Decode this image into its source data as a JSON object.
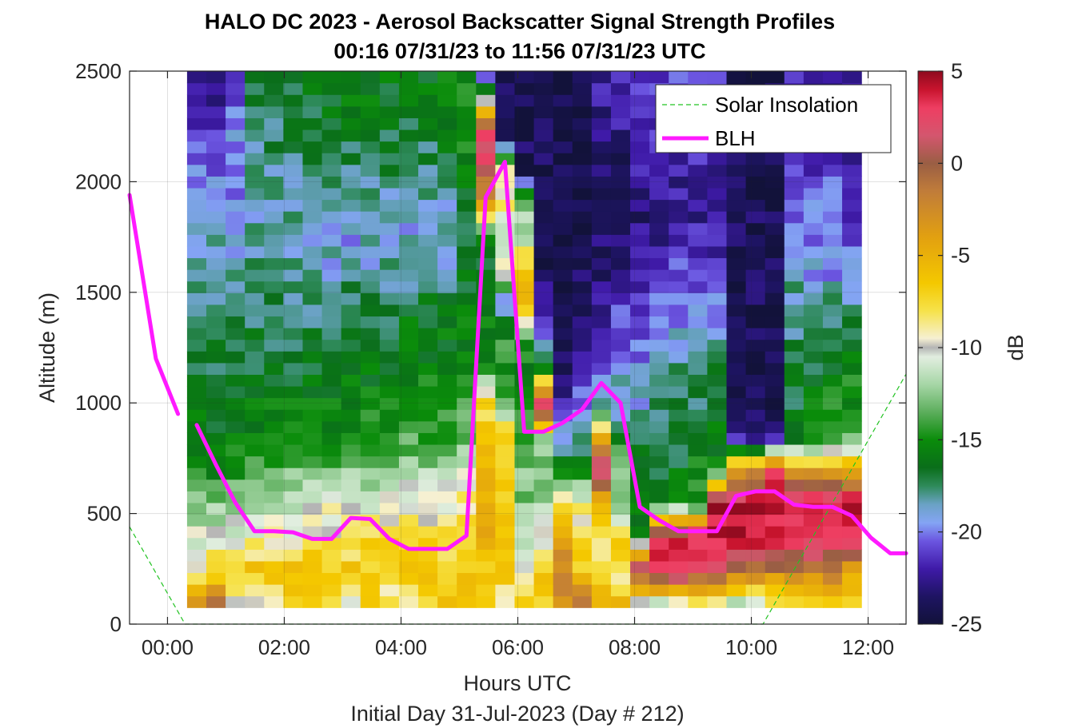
{
  "chart_data": {
    "type": "heatmap",
    "title": "HALO DC 2023 - Aerosol Backscatter Signal Strength Profiles",
    "subtitle": "00:16 07/31/23 to 11:56 07/31/23  UTC",
    "xlabel": "Hours UTC",
    "xlabel2": "Initial Day 31-Jul-2023 (Day # 212)",
    "ylabel": "Altitude (m)",
    "colorbar_label": "dB",
    "xlim": [
      -0.65,
      12.65
    ],
    "ylim": [
      0,
      2500
    ],
    "x_ticks": [
      0,
      2,
      4,
      6,
      8,
      10,
      12
    ],
    "x_tick_labels": [
      "00:00",
      "02:00",
      "04:00",
      "06:00",
      "08:00",
      "10:00",
      "12:00"
    ],
    "y_ticks": [
      0,
      500,
      1000,
      1500,
      2000,
      2500
    ],
    "y_tick_labels": [
      "0",
      "500",
      "1000",
      "1500",
      "2000",
      "2500"
    ],
    "clim": [
      -25,
      5
    ],
    "colorbar_ticks": [
      5,
      0,
      -5,
      -10,
      -15,
      -20,
      -25
    ],
    "colorbar_tick_labels": [
      "5",
      "0",
      "-5",
      "-10",
      "-15",
      "-20",
      "-25"
    ],
    "colormap": [
      {
        "db": -25,
        "color": "#12123a"
      },
      {
        "db": -23.5,
        "color": "#1e1462"
      },
      {
        "db": -22,
        "color": "#3f1aa8"
      },
      {
        "db": -20.5,
        "color": "#6b55e0"
      },
      {
        "db": -19.5,
        "color": "#84a4f4"
      },
      {
        "db": -18.5,
        "color": "#6aa2c4"
      },
      {
        "db": -17.5,
        "color": "#2e8a5a"
      },
      {
        "db": -16.5,
        "color": "#0a6e1a"
      },
      {
        "db": -15,
        "color": "#0a8c0a"
      },
      {
        "db": -13.5,
        "color": "#5cae5c"
      },
      {
        "db": -12,
        "color": "#a6d6a6"
      },
      {
        "db": -10.5,
        "color": "#e2eee0"
      },
      {
        "db": -10,
        "color": "#b4b4b4"
      },
      {
        "db": -9.5,
        "color": "#f6f0d2"
      },
      {
        "db": -8,
        "color": "#f6e24a"
      },
      {
        "db": -6.5,
        "color": "#f4c800"
      },
      {
        "db": -4,
        "color": "#e2a010"
      },
      {
        "db": -1.5,
        "color": "#c07c3a"
      },
      {
        "db": 0,
        "color": "#9a5e44"
      },
      {
        "db": 1.5,
        "color": "#d4566e"
      },
      {
        "db": 3,
        "color": "#ee3e62"
      },
      {
        "db": 4,
        "color": "#c8142e"
      },
      {
        "db": 5,
        "color": "#8e0a1e"
      }
    ],
    "heatmap": {
      "columns_x_hours": [
        0.5,
        0.83,
        1.16,
        1.49,
        1.82,
        2.15,
        2.48,
        2.81,
        3.14,
        3.47,
        3.8,
        4.13,
        4.46,
        4.79,
        5.12,
        5.45,
        5.78,
        6.11,
        6.44,
        6.77,
        7.1,
        7.43,
        7.76,
        8.09,
        8.42,
        8.75,
        9.08,
        9.41,
        9.74,
        10.07,
        10.4,
        10.73,
        11.06,
        11.39,
        11.72
      ],
      "rows_altitude_m": [
        100,
        250,
        400,
        550,
        700,
        850,
        1000,
        1150,
        1300,
        1450,
        1600,
        1750,
        1900,
        2050,
        2200,
        2350,
        2500
      ],
      "column_profiles_db": [
        [
          -2,
          -9,
          -10.5,
          -13,
          -15,
          -16,
          -16.5,
          -17,
          -17,
          -18,
          -19,
          -19,
          -19.5,
          -20,
          -21,
          -22,
          -22.5
        ],
        [
          -2,
          -7,
          -10.5,
          -13,
          -15,
          -16,
          -16.5,
          -17,
          -17,
          -18,
          -18.5,
          -19,
          -19.5,
          -20,
          -21,
          -22,
          -22.5
        ],
        [
          -9,
          -7,
          -10,
          -12.5,
          -15,
          -16,
          -16.5,
          -17,
          -17.5,
          -18,
          -18.5,
          -19,
          -19.5,
          -19.5,
          -20,
          -20.5,
          -21
        ],
        [
          -10,
          -6.5,
          -9.5,
          -12,
          -14.5,
          -15.5,
          -16,
          -16.5,
          -17,
          -17.5,
          -18,
          -18.5,
          -19,
          -18.5,
          -18,
          -17.5,
          -17
        ],
        [
          -9,
          -6.5,
          -9.5,
          -11,
          -14,
          -15,
          -16,
          -16.5,
          -17,
          -17.5,
          -18,
          -18.5,
          -18.5,
          -18,
          -17.5,
          -17,
          -16.5
        ],
        [
          -7,
          -6.5,
          -9.5,
          -11,
          -13.5,
          -15,
          -16,
          -16.5,
          -17,
          -17.5,
          -18,
          -18.5,
          -18.5,
          -18,
          -17.5,
          -17,
          -16.5
        ],
        [
          -7,
          -6.5,
          -9,
          -10.5,
          -13,
          -15,
          -15.5,
          -16.5,
          -17,
          -17.5,
          -18,
          -18.5,
          -19,
          -18,
          -17,
          -16.5,
          -16
        ],
        [
          -7,
          -6.5,
          -9,
          -10,
          -13,
          -15,
          -15.5,
          -16,
          -17,
          -17.5,
          -19,
          -19,
          -19,
          -18,
          -17,
          -16.5,
          -16
        ],
        [
          -10,
          -6.5,
          -8.5,
          -10.5,
          -13,
          -14.5,
          -15.5,
          -16,
          -16.5,
          -17,
          -18,
          -19.5,
          -19,
          -18,
          -16.5,
          -16,
          -16
        ],
        [
          -6.5,
          -6.5,
          -8,
          -10.5,
          -12.5,
          -14.5,
          -15.5,
          -16,
          -16.5,
          -17,
          -18.5,
          -19,
          -18.5,
          -17.5,
          -16.5,
          -16,
          -16
        ],
        [
          -9,
          -6.5,
          -8,
          -10,
          -12.5,
          -14.5,
          -15.5,
          -16,
          -16.5,
          -17,
          -18.5,
          -19,
          -18.5,
          -17.5,
          -17,
          -16.5,
          -16
        ],
        [
          -10,
          -6.5,
          -8,
          -10,
          -12,
          -14,
          -15,
          -15.5,
          -16,
          -16.5,
          -18.5,
          -19,
          -18.5,
          -17.5,
          -17,
          -16.5,
          -16
        ],
        [
          -7,
          -6.5,
          -8,
          -10,
          -12,
          -14,
          -15,
          -15.5,
          -16,
          -16.5,
          -19,
          -19,
          -18.5,
          -17.5,
          -17,
          -16.5,
          -16
        ],
        [
          -7,
          -6.5,
          -8,
          -10,
          -12,
          -14,
          -15,
          -15.5,
          -16,
          -16.5,
          -19.5,
          -19,
          -18.5,
          -17,
          -16.5,
          -16,
          -16
        ],
        [
          -7,
          -6,
          -7.5,
          -9,
          -10.5,
          -13,
          -14.5,
          -15,
          -15.5,
          -16,
          -16.5,
          -16.5,
          -16.5,
          -15.5,
          -15,
          -15,
          -15
        ],
        [
          -6.5,
          -6.5,
          -5,
          -5,
          -6,
          -7,
          -8,
          -15,
          -15.5,
          -16,
          -16.5,
          -15,
          -4,
          1,
          3,
          -8,
          -23.5
        ],
        [
          -10.5,
          -6,
          -6,
          -7,
          -7,
          -6.5,
          -13,
          -15,
          -14.5,
          -20.5,
          -7.5,
          -13,
          -8.5,
          -10,
          -23,
          -23.5,
          -24
        ],
        [
          -6.5,
          -10,
          -12,
          -13,
          -12.5,
          -14,
          -15,
          -15.5,
          -14,
          -6.5,
          -6.5,
          -11,
          -12.5,
          -24,
          -24,
          -24.5,
          -24.5
        ],
        [
          -8,
          -6.5,
          -10,
          -12,
          -13,
          -12,
          4,
          -14,
          -21,
          -22,
          -24.5,
          -24.5,
          -24.5,
          -24,
          -24,
          -24.5,
          -24.5
        ],
        [
          -3,
          -1.5,
          -6,
          -8.5,
          -16,
          -18.5,
          -22,
          -23.5,
          -24,
          -24,
          -24.5,
          -24.5,
          -24.5,
          -24.5,
          -24.5,
          -24.5,
          -24.5
        ],
        [
          -2,
          -6.5,
          -8.5,
          -9.5,
          -15,
          -18,
          -20.5,
          -22,
          -22.5,
          -23.5,
          -24,
          -24.5,
          -24.5,
          -24.5,
          -24.5,
          -24.5,
          -24.5
        ],
        [
          -5.5,
          -8,
          -9.5,
          -4,
          2,
          -5,
          -19,
          -21,
          -22,
          -22.5,
          -23,
          -23.5,
          -24,
          -23.5,
          -23,
          -22.5,
          -22
        ],
        [
          -5.5,
          -9,
          -6.5,
          -14,
          -10.5,
          -17,
          -19.5,
          -19,
          -20.5,
          -21.5,
          -22.5,
          -23.5,
          -24,
          -23.5,
          -23,
          -22,
          -21.5
        ],
        [
          -10,
          3,
          -14.5,
          -16.5,
          -15,
          -17,
          -19,
          -20,
          -21,
          -22,
          -22,
          -22.5,
          -23.5,
          -22.5,
          -22,
          -21,
          -21
        ],
        [
          -10.5,
          4,
          2,
          -16,
          -17,
          -18,
          -17,
          -18.5,
          -19.5,
          -20.5,
          -21.5,
          -22.5,
          -23,
          -22,
          -21.5,
          -21,
          -21
        ],
        [
          -9,
          4,
          3,
          -15,
          -16.5,
          -17,
          -17,
          -18,
          -19,
          -20,
          -21,
          -22,
          -22.5,
          -22,
          -21.5,
          -21,
          -21
        ],
        [
          -8,
          1,
          4,
          -15.5,
          -15,
          -16.5,
          -17,
          -18,
          -19,
          -20,
          -21,
          -22,
          -22.5,
          -22,
          -21.5,
          -21,
          -21
        ],
        [
          -7.5,
          3,
          4,
          4,
          -15.5,
          -16,
          -16.5,
          -17,
          -19,
          -20,
          -21,
          -22,
          -22.5,
          -22,
          -21.5,
          -21,
          -21
        ],
        [
          -11,
          -1,
          4,
          4,
          -3.5,
          -23,
          -24,
          -24.5,
          -24,
          -24,
          -24,
          -24,
          -24,
          -24,
          -24,
          -24,
          -24.5
        ],
        [
          -10.5,
          -1,
          4,
          4,
          -3,
          -23,
          -24,
          -24.5,
          -24,
          -24,
          -24,
          -24,
          -24,
          -24,
          -24,
          -24,
          -24.5
        ],
        [
          -9,
          -1,
          4.5,
          4,
          3,
          -23.5,
          -24.5,
          -24.5,
          -24,
          -24,
          -24,
          -24,
          -24,
          -24,
          -24,
          -24,
          -24.5
        ],
        [
          -8,
          -1.5,
          3,
          4,
          -5,
          -16,
          -17,
          -17,
          -17.5,
          -18,
          -19,
          -20,
          -20.5,
          -21,
          -21,
          -21,
          -21
        ],
        [
          -6.5,
          -1.5,
          3,
          4,
          -5,
          -15,
          -16,
          -16.5,
          -17,
          -18,
          -19.5,
          -20,
          -20.5,
          -21,
          -21.5,
          -22,
          -22
        ],
        [
          -6.5,
          0,
          3,
          4,
          -5,
          -14.5,
          -15,
          -16,
          -17,
          -18,
          -19.5,
          -20,
          -20.5,
          -21,
          -22,
          -22.5,
          -22.5
        ],
        [
          -6.5,
          -4,
          4,
          4,
          -5.5,
          -14,
          -15,
          -15.5,
          -16.5,
          -18,
          -19.5,
          -20.5,
          -21,
          -21.5,
          -22,
          -22.5,
          -22.5
        ]
      ]
    },
    "series": [
      {
        "name": "Solar Insolation",
        "style": "dashed",
        "color": "#22c322",
        "x": [
          -0.65,
          0.3,
          10.2,
          12.65
        ],
        "y": [
          440,
          0,
          0,
          1130
        ]
      },
      {
        "name": "BLH",
        "style": "solid",
        "color": "#ff1aff",
        "segments": [
          {
            "x": [
              -0.65,
              -0.2,
              0.18
            ],
            "y": [
              1940,
              1200,
              950
            ]
          },
          {
            "x": [
              0.5,
              0.83,
              1.16,
              1.49,
              1.82,
              2.15,
              2.48,
              2.81,
              3.14,
              3.47,
              3.8,
              4.13,
              4.46,
              4.79,
              5.12,
              5.45,
              5.78,
              6.11,
              6.44,
              6.77,
              7.1,
              7.43,
              7.76,
              8.09,
              8.42,
              8.75,
              9.08,
              9.41,
              9.74,
              10.07,
              10.4,
              10.73,
              11.06,
              11.39,
              11.72,
              12.05,
              12.38,
              12.65
            ],
            "y": [
              900,
              720,
              550,
              420,
              420,
              415,
              385,
              385,
              480,
              475,
              385,
              340,
              340,
              340,
              400,
              1930,
              2090,
              870,
              870,
              910,
              970,
              1090,
              1000,
              530,
              470,
              420,
              420,
              420,
              580,
              600,
              600,
              540,
              530,
              530,
              490,
              390,
              320,
              320
            ]
          }
        ]
      }
    ],
    "legend": {
      "position": "top-right",
      "entries": [
        "Solar Insolation",
        "BLH"
      ]
    },
    "grid": true
  }
}
